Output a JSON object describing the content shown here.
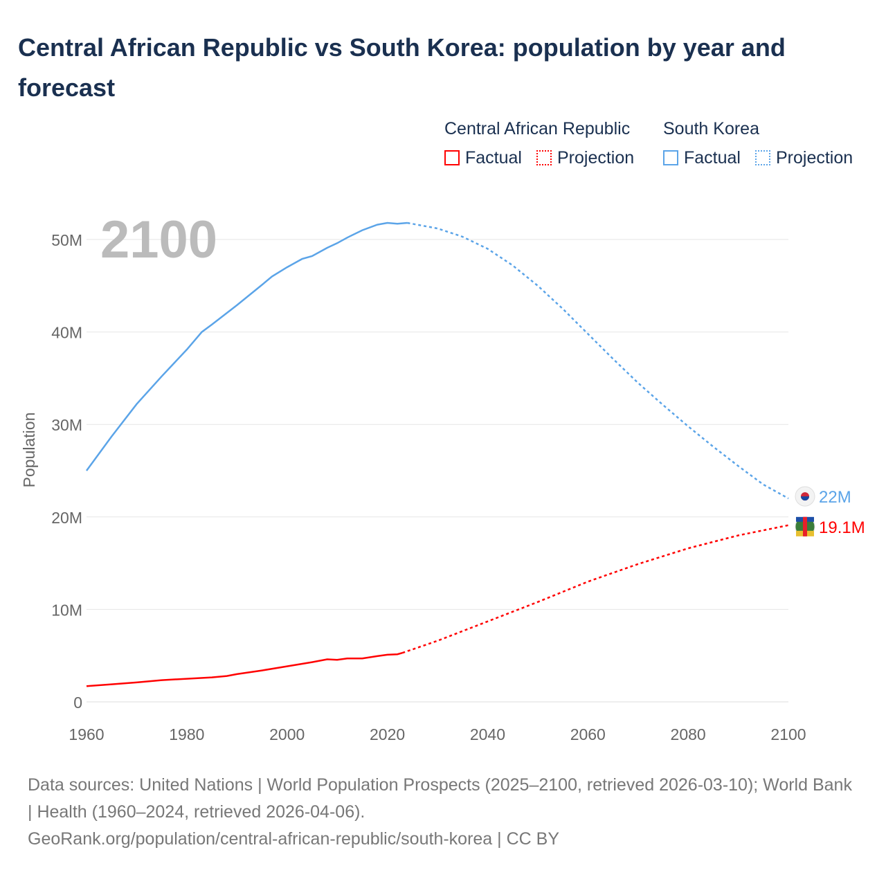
{
  "title": "Central African Republic vs South Korea: population by year and forecast",
  "legend": {
    "car_title": "Central African Republic",
    "sk_title": "South Korea",
    "factual": "Factual",
    "projection": "Projection"
  },
  "footer": {
    "line1": "Data sources: United Nations | World Population Prospects (2025–2100, retrieved 2026-03-10); World Bank | Health (1960–2024, retrieved 2026-04-06).",
    "line2": "GeoRank.org/population/central-african-republic/south-korea | CC BY"
  },
  "chart_data": {
    "type": "line",
    "ylabel": "Population",
    "year_label": "2100",
    "xlim": [
      1960,
      2100
    ],
    "ylim": [
      0,
      50000000
    ],
    "xticks": [
      "1960",
      "1980",
      "2000",
      "2020",
      "2040",
      "2060",
      "2080",
      "2100"
    ],
    "yticks": [
      {
        "v": 0,
        "label": "0"
      },
      {
        "v": 10,
        "label": "10M"
      },
      {
        "v": 20,
        "label": "20M"
      },
      {
        "v": 30,
        "label": "30M"
      },
      {
        "v": 40,
        "label": "40M"
      },
      {
        "v": 50,
        "label": "50M"
      }
    ],
    "series": [
      {
        "name": "South Korea",
        "color": "#5ba4e8",
        "end_label": "22M",
        "factual": [
          [
            1960,
            25.0
          ],
          [
            1965,
            28.7
          ],
          [
            1970,
            32.2
          ],
          [
            1975,
            35.2
          ],
          [
            1980,
            38.1
          ],
          [
            1983,
            40.0
          ],
          [
            1985,
            40.8
          ],
          [
            1990,
            42.9
          ],
          [
            1995,
            45.1
          ],
          [
            1997,
            46.0
          ],
          [
            2000,
            47.0
          ],
          [
            2003,
            47.9
          ],
          [
            2005,
            48.2
          ],
          [
            2008,
            49.1
          ],
          [
            2010,
            49.6
          ],
          [
            2012,
            50.2
          ],
          [
            2015,
            51.0
          ],
          [
            2018,
            51.6
          ],
          [
            2020,
            51.8
          ],
          [
            2022,
            51.7
          ],
          [
            2024,
            51.8
          ]
        ],
        "projection": [
          [
            2024,
            51.8
          ],
          [
            2030,
            51.2
          ],
          [
            2035,
            50.3
          ],
          [
            2040,
            49.0
          ],
          [
            2045,
            47.2
          ],
          [
            2050,
            45.0
          ],
          [
            2055,
            42.5
          ],
          [
            2060,
            39.8
          ],
          [
            2065,
            37.1
          ],
          [
            2070,
            34.5
          ],
          [
            2075,
            32.1
          ],
          [
            2080,
            29.8
          ],
          [
            2085,
            27.6
          ],
          [
            2090,
            25.5
          ],
          [
            2095,
            23.5
          ],
          [
            2100,
            22.0
          ]
        ]
      },
      {
        "name": "Central African Republic",
        "color": "#ff0000",
        "end_label": "19.1M",
        "factual": [
          [
            1960,
            1.7
          ],
          [
            1965,
            1.9
          ],
          [
            1970,
            2.1
          ],
          [
            1975,
            2.35
          ],
          [
            1980,
            2.5
          ],
          [
            1985,
            2.65
          ],
          [
            1988,
            2.8
          ],
          [
            1990,
            3.0
          ],
          [
            1995,
            3.4
          ],
          [
            2000,
            3.85
          ],
          [
            2005,
            4.3
          ],
          [
            2008,
            4.6
          ],
          [
            2010,
            4.55
          ],
          [
            2012,
            4.7
          ],
          [
            2015,
            4.7
          ],
          [
            2018,
            4.95
          ],
          [
            2020,
            5.1
          ],
          [
            2022,
            5.15
          ],
          [
            2023,
            5.3
          ]
        ],
        "projection": [
          [
            2023,
            5.3
          ],
          [
            2030,
            6.6
          ],
          [
            2040,
            8.7
          ],
          [
            2050,
            10.8
          ],
          [
            2060,
            13.0
          ],
          [
            2070,
            14.9
          ],
          [
            2080,
            16.6
          ],
          [
            2090,
            18.0
          ],
          [
            2100,
            19.1
          ]
        ]
      }
    ]
  }
}
